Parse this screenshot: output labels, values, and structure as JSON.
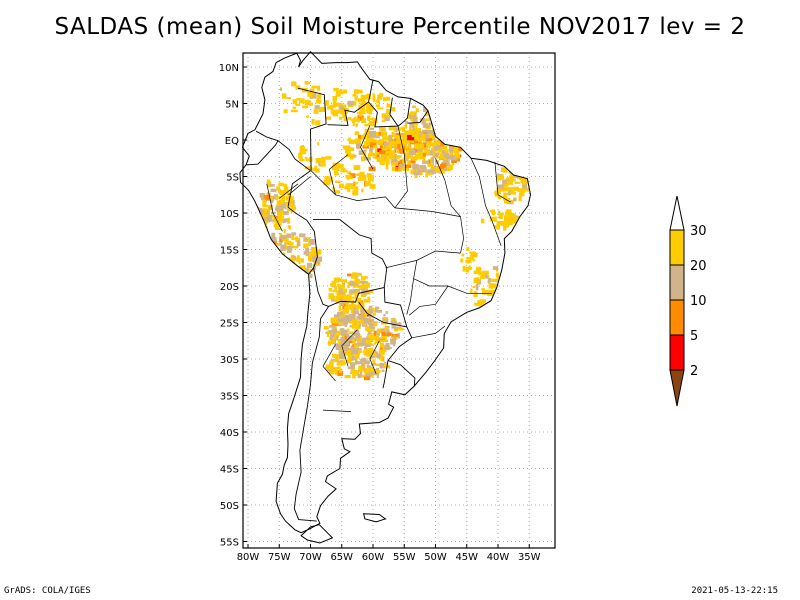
{
  "title": "SALDAS (mean) Soil Moisture Percentile NOV2017 lev = 2",
  "footer": {
    "left": "GrADS: COLA/IGES",
    "right": "2021-05-13-22:15"
  },
  "map": {
    "region": "South America",
    "lon_range": [
      -80,
      -30
    ],
    "lat_range": [
      -56,
      12
    ],
    "lon_ticks": [
      {
        "value": -80,
        "label": "80W"
      },
      {
        "value": -75,
        "label": "75W"
      },
      {
        "value": -70,
        "label": "70W"
      },
      {
        "value": -65,
        "label": "65W"
      },
      {
        "value": -60,
        "label": "60W"
      },
      {
        "value": -55,
        "label": "55W"
      },
      {
        "value": -50,
        "label": "50W"
      },
      {
        "value": -45,
        "label": "45W"
      },
      {
        "value": -40,
        "label": "40W"
      },
      {
        "value": -35,
        "label": "35W"
      }
    ],
    "lat_ticks": [
      {
        "value": 10,
        "label": "10N"
      },
      {
        "value": 5,
        "label": "5N"
      },
      {
        "value": 0,
        "label": "EQ"
      },
      {
        "value": -5,
        "label": "5S"
      },
      {
        "value": -10,
        "label": "10S"
      },
      {
        "value": -15,
        "label": "15S"
      },
      {
        "value": -20,
        "label": "20S"
      },
      {
        "value": -25,
        "label": "25S"
      },
      {
        "value": -30,
        "label": "30S"
      },
      {
        "value": -35,
        "label": "35S"
      },
      {
        "value": -40,
        "label": "40S"
      },
      {
        "value": -45,
        "label": "45S"
      },
      {
        "value": -50,
        "label": "50S"
      },
      {
        "value": -55,
        "label": "55S"
      }
    ]
  },
  "legend": {
    "boundaries": [
      "30",
      "20",
      "10",
      "5",
      "2"
    ],
    "colors": {
      "top_arrow": "#ffffff",
      "bin_20_30": "#ffcc00",
      "bin_10_20": "#d2b48c",
      "bin_5_10": "#ff8c00",
      "bin_2_5": "#ff0000",
      "bottom_arrow": "#8b4513"
    }
  }
}
